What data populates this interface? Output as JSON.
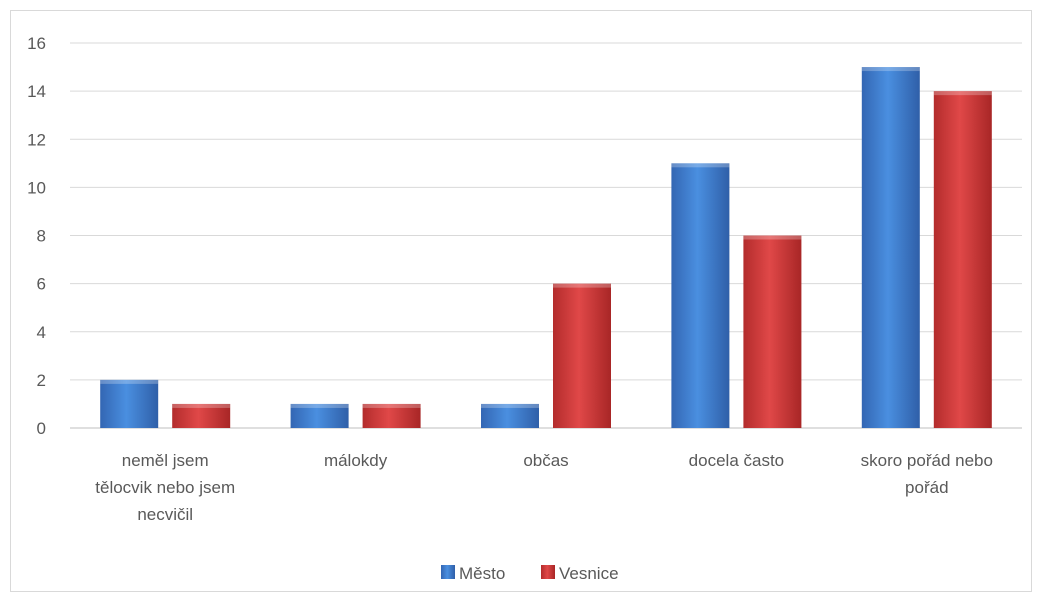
{
  "chart_data": {
    "type": "bar",
    "title": "",
    "xlabel": "",
    "ylabel": "",
    "ylim": [
      0,
      16
    ],
    "yticks": [
      0,
      2,
      4,
      6,
      8,
      10,
      12,
      14,
      16
    ],
    "grid": true,
    "legend_position": "bottom",
    "categories": [
      [
        "neměl jsem",
        "tělocvik nebo jsem",
        "necvičil"
      ],
      [
        "málokdy"
      ],
      [
        "občas"
      ],
      [
        "docela často"
      ],
      [
        "skoro pořád nebo",
        "pořád"
      ]
    ],
    "series": [
      {
        "name": "Město",
        "color": "#3a7fd0",
        "values": [
          2,
          1,
          1,
          11,
          15
        ]
      },
      {
        "name": "Vesnice",
        "color": "#d13b3b",
        "values": [
          1,
          1,
          6,
          8,
          14
        ]
      }
    ]
  }
}
